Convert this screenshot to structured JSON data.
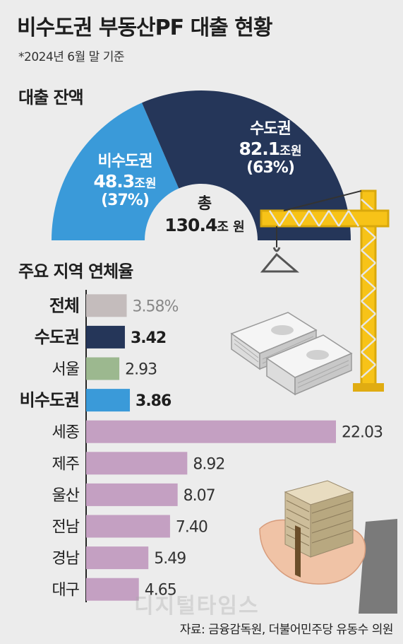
{
  "title": "비수도권 부동산PF 대출 현황",
  "subtitle": "*2024년 6월  말 기준",
  "source": "자료: 금융감독원, 더불어민주당 유동수 의원",
  "watermark": "디지털타임스",
  "chart_data": [
    {
      "type": "pie",
      "title": "대출 잔액",
      "total": {
        "label": "총",
        "value": 130.4,
        "display": "130.4",
        "unit": "조 원"
      },
      "slices": [
        {
          "name": "비수도권",
          "value": 48.3,
          "display": "48.3",
          "unit": "조원",
          "pct": "(37%)",
          "color": "#3a9ad9"
        },
        {
          "name": "수도권",
          "value": 82.1,
          "display": "82.1",
          "unit": "조원",
          "pct": "(63%)",
          "color": "#253659"
        }
      ]
    },
    {
      "type": "bar",
      "orientation": "horizontal",
      "title": "주요 지역 연체율",
      "unit": "%",
      "categories": [
        "전체",
        "수도권",
        "서울",
        "비수도권",
        "세종",
        "제주",
        "울산",
        "전남",
        "경남",
        "대구"
      ],
      "values": [
        3.58,
        3.42,
        2.93,
        3.86,
        22.03,
        8.92,
        8.07,
        7.4,
        5.49,
        4.65
      ],
      "labels": [
        "3.58%",
        "3.42",
        "2.93",
        "3.86",
        "22.03",
        "8.92",
        "8.07",
        "7.40",
        "5.49",
        "4.65"
      ],
      "colors": [
        "#c4bcbc",
        "#253659",
        "#9cb88f",
        "#3a9ad9",
        "#c4a0c2",
        "#c4a0c2",
        "#c4a0c2",
        "#c4a0c2",
        "#c4a0c2",
        "#c4a0c2"
      ],
      "emphasis": [
        true,
        true,
        false,
        true,
        false,
        false,
        false,
        false,
        false,
        false
      ],
      "xlim": [
        0,
        22.03
      ]
    }
  ]
}
